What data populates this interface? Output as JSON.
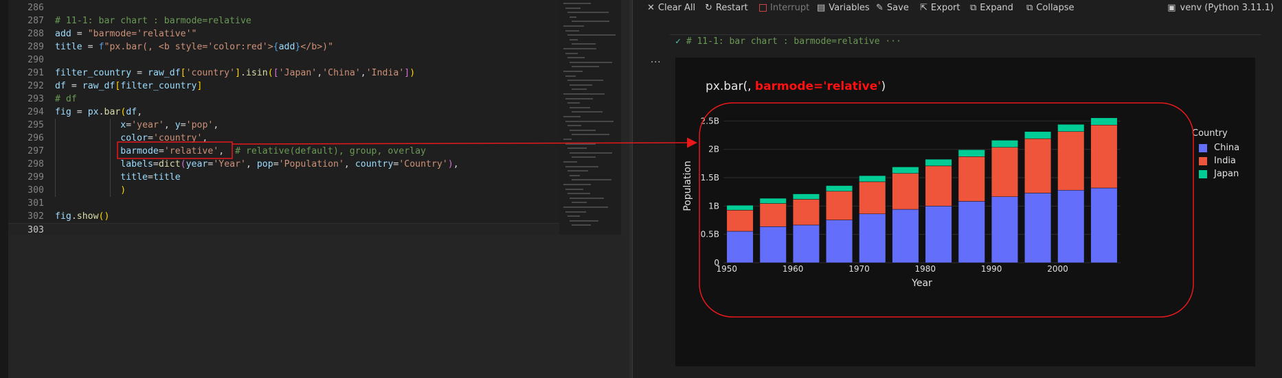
{
  "editor": {
    "lines": [
      {
        "no": "286",
        "html": ""
      },
      {
        "no": "287",
        "html": "<span class=\"cm\"># 11-1: bar chart : barmode=relative</span>"
      },
      {
        "no": "288",
        "html": "<span class=\"vr\">add</span> <span class=\"pn\">=</span> <span class=\"st\">\"barmode='relative'\"</span>"
      },
      {
        "no": "289",
        "html": "<span class=\"vr\">title</span> <span class=\"pn\">=</span> <span class=\"kw\">f</span><span class=\"st\">\"px.bar(, &lt;b style='color:red'&gt;</span><span class=\"kw\">{</span><span class=\"vr\">add</span><span class=\"kw\">}</span><span class=\"st\">&lt;/b&gt;)\"</span>"
      },
      {
        "no": "290",
        "html": ""
      },
      {
        "no": "291",
        "html": "<span class=\"vr\">filter_country</span> <span class=\"pn\">=</span> <span class=\"vr\">raw_df</span><span class=\"br\">[</span><span class=\"st\">'country'</span><span class=\"br\">]</span><span class=\"pn\">.</span><span class=\"fn\">isin</span><span class=\"br\">(</span><span class=\"br2\">[</span><span class=\"st\">'Japan'</span><span class=\"pn\">,</span><span class=\"st\">'China'</span><span class=\"pn\">,</span><span class=\"st\">'India'</span><span class=\"br2\">]</span><span class=\"br\">)</span>"
      },
      {
        "no": "292",
        "html": "<span class=\"vr\">df</span> <span class=\"pn\">=</span> <span class=\"vr\">raw_df</span><span class=\"br\">[</span><span class=\"vr\">filter_country</span><span class=\"br\">]</span>"
      },
      {
        "no": "293",
        "html": "<span class=\"cm\"># df</span>"
      },
      {
        "no": "294",
        "html": "<span class=\"vr\">fig</span> <span class=\"pn\">=</span> <span class=\"vr\">px</span><span class=\"pn\">.</span><span class=\"fn\">bar</span><span class=\"br\">(</span><span class=\"vr\">df</span><span class=\"pn\">,</span>"
      },
      {
        "no": "295",
        "html": "            <span class=\"vr\">x</span><span class=\"pn\">=</span><span class=\"st\">'year'</span><span class=\"pn\">,</span> <span class=\"vr\">y</span><span class=\"pn\">=</span><span class=\"st\">'pop'</span><span class=\"pn\">,</span>"
      },
      {
        "no": "296",
        "html": "            <span class=\"vr\">color</span><span class=\"pn\">=</span><span class=\"st\">'country'</span><span class=\"pn\">,</span>"
      },
      {
        "no": "297",
        "html": "            <span class=\"vr\">barmode</span><span class=\"pn\">=</span><span class=\"st\">'relative'</span><span class=\"pn\">,</span>  <span class=\"cm\"># relative(default), group, overlay</span>"
      },
      {
        "no": "298",
        "html": "            <span class=\"vr\">labels</span><span class=\"pn\">=</span><span class=\"fn\">dict</span><span class=\"br2\">(</span><span class=\"vr\">year</span><span class=\"pn\">=</span><span class=\"st\">'Year'</span><span class=\"pn\">,</span> <span class=\"vr\">pop</span><span class=\"pn\">=</span><span class=\"st\">'Population'</span><span class=\"pn\">,</span> <span class=\"vr\">country</span><span class=\"pn\">=</span><span class=\"st\">'Country'</span><span class=\"br2\">)</span><span class=\"pn\">,</span>"
      },
      {
        "no": "299",
        "html": "            <span class=\"vr\">title</span><span class=\"pn\">=</span><span class=\"vr\">title</span>"
      },
      {
        "no": "300",
        "html": "            <span class=\"br\">)</span>"
      },
      {
        "no": "301",
        "html": ""
      },
      {
        "no": "302",
        "html": "<span class=\"vr\">fig</span><span class=\"pn\">.</span><span class=\"fn\">show</span><span class=\"br\">()</span>"
      },
      {
        "no": "303",
        "html": ""
      }
    ],
    "active_line": "303",
    "highlight_color": "#e8191b"
  },
  "toolbar": {
    "clear_all": "Clear All",
    "restart": "Restart",
    "interrupt": "Interrupt",
    "variables": "Variables",
    "save": "Save",
    "export": "Export",
    "expand": "Expand",
    "collapse": "Collapse",
    "kernel": "venv (Python 3.11.1)"
  },
  "cell": {
    "header": "# 11-1: bar chart : barmode=relative",
    "ellipsis": "···",
    "more": "..."
  },
  "plot": {
    "title_prefix": "px.bar(, ",
    "title_highlight": "barmode='relative'",
    "title_suffix": ")"
  },
  "chart_data": {
    "type": "bar",
    "barmode": "relative",
    "title": "px.bar(, barmode='relative')",
    "xlabel": "Year",
    "ylabel": "Population",
    "x": [
      1952,
      1957,
      1962,
      1967,
      1972,
      1977,
      1982,
      1987,
      1992,
      1997,
      2002,
      2007
    ],
    "xticks": [
      1950,
      1960,
      1970,
      1980,
      1990,
      2000
    ],
    "ylim": [
      0,
      2.65
    ],
    "yticks": [
      0,
      0.5,
      1,
      1.5,
      2,
      2.5
    ],
    "ytick_labels": [
      "0",
      "0.5B",
      "1B",
      "1.5B",
      "2B",
      "2.5B"
    ],
    "legend_title": "Country",
    "legend_position": "right",
    "series": [
      {
        "name": "China",
        "color": "#636efa",
        "values": [
          0.556,
          0.637,
          0.666,
          0.755,
          0.862,
          0.943,
          1.0,
          1.084,
          1.165,
          1.23,
          1.28,
          1.319
        ]
      },
      {
        "name": "India",
        "color": "#ef553b",
        "values": [
          0.372,
          0.409,
          0.454,
          0.506,
          0.567,
          0.634,
          0.708,
          0.788,
          0.872,
          0.959,
          1.034,
          1.11
        ]
      },
      {
        "name": "Japan",
        "color": "#00cc96",
        "values": [
          0.086,
          0.091,
          0.095,
          0.1,
          0.107,
          0.113,
          0.118,
          0.122,
          0.124,
          0.125,
          0.127,
          0.127
        ]
      }
    ]
  }
}
